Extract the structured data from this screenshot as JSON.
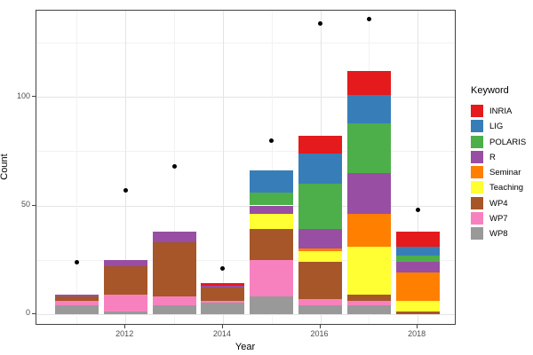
{
  "figure": {
    "xlabel": "Year",
    "ylabel": "Count",
    "legend_title": "Keyword"
  },
  "chart_data": {
    "type": "bar",
    "stacked": true,
    "orientation": "vertical",
    "title": "",
    "xlabel": "Year",
    "ylabel": "Count",
    "legend_title": "Keyword",
    "legend_position": "right",
    "grid": true,
    "categories": [
      2011,
      2012,
      2013,
      2014,
      2015,
      2016,
      2017,
      2018
    ],
    "series": [
      {
        "name": "INRIA",
        "color": "#e41a1c",
        "values": [
          0,
          0,
          0,
          1,
          0,
          8,
          11,
          7
        ]
      },
      {
        "name": "LIG",
        "color": "#377eb8",
        "values": [
          0,
          0,
          0,
          0,
          10,
          14,
          13,
          4
        ]
      },
      {
        "name": "POLARIS",
        "color": "#4daf4a",
        "values": [
          0,
          0,
          0,
          0,
          6,
          21,
          23,
          3
        ]
      },
      {
        "name": "R",
        "color": "#984ea3",
        "values": [
          1,
          3,
          5,
          1,
          4,
          9,
          19,
          5
        ]
      },
      {
        "name": "Seminar",
        "color": "#ff7f00",
        "values": [
          0,
          0,
          0,
          0,
          0,
          1,
          15,
          13
        ]
      },
      {
        "name": "Teaching",
        "color": "#ffff33",
        "values": [
          0,
          0,
          0,
          0,
          7,
          5,
          22,
          5
        ]
      },
      {
        "name": "WP4",
        "color": "#a65628",
        "values": [
          2,
          13,
          25,
          6,
          14,
          17,
          3,
          1
        ]
      },
      {
        "name": "WP7",
        "color": "#f781bf",
        "values": [
          2,
          8,
          4,
          1,
          17,
          3,
          2,
          0
        ]
      },
      {
        "name": "WP8",
        "color": "#999999",
        "values": [
          4,
          1,
          4,
          5,
          8,
          4,
          4,
          0
        ]
      }
    ],
    "stack_totals": [
      9,
      25,
      38,
      14,
      66,
      82,
      112,
      38
    ],
    "stack_order_note": "stacked bottom-to-top in reverse legend order: WP8 bottom, INRIA top",
    "points": {
      "marker": "dot",
      "color": "#000000",
      "values": [
        24,
        57,
        68,
        21,
        80,
        134,
        136,
        48
      ]
    },
    "x_ticks": [
      2012,
      2014,
      2016,
      2018
    ],
    "x_minor_years": [
      2011,
      2013,
      2015,
      2017
    ],
    "y_ticks": [
      0,
      50,
      100
    ],
    "y_minor_ticks": [
      25,
      75,
      125
    ],
    "ylim": [
      -5.6,
      140
    ],
    "xlim": [
      2010.45,
      2018.55
    ]
  }
}
